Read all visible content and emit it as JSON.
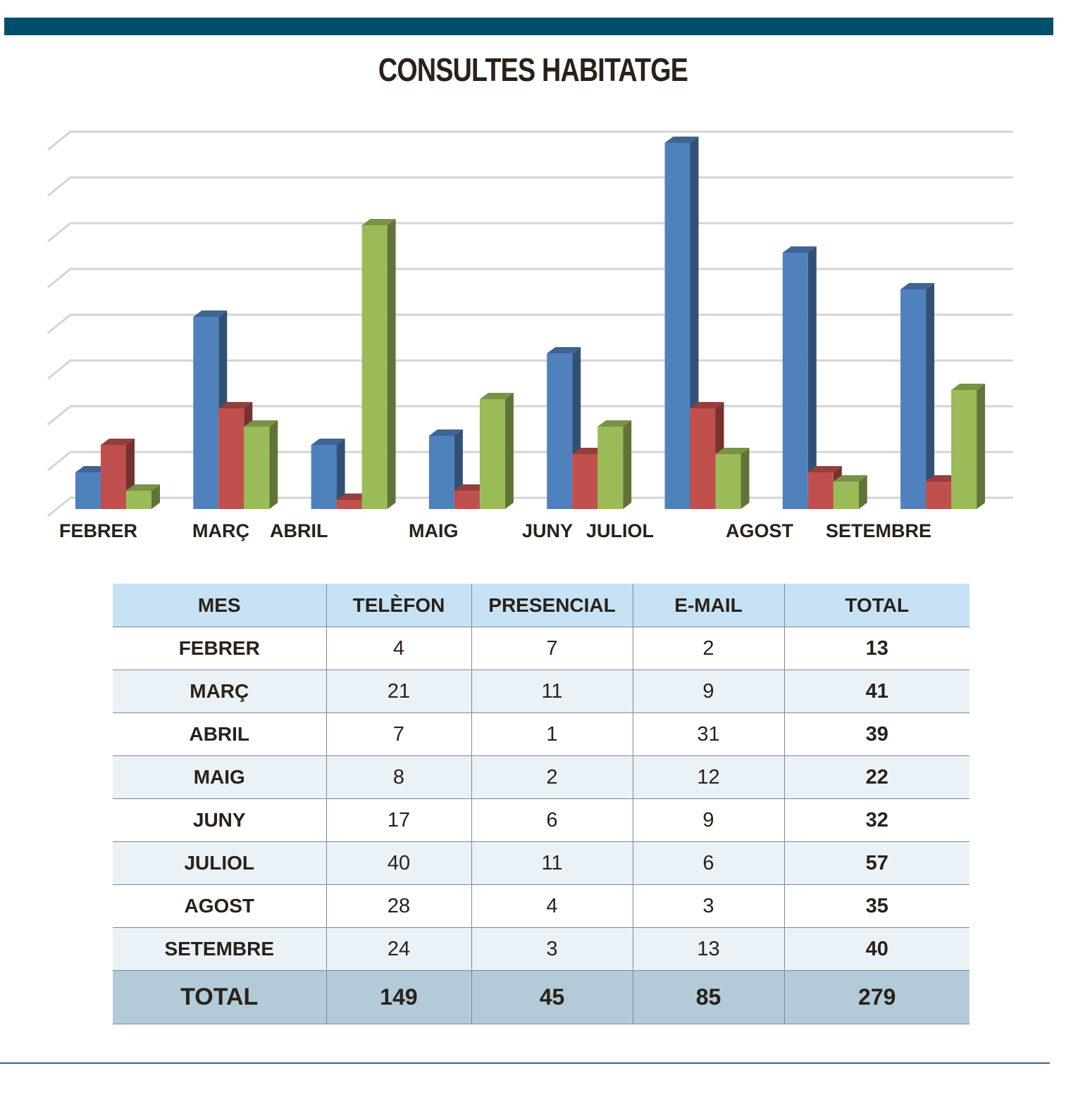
{
  "title": "CONSULTES HABITATGE",
  "chart_data": {
    "type": "bar",
    "style": "3d-clustered-column",
    "categories": [
      "FEBRER",
      "MARÇ",
      "ABRIL",
      "MAIG",
      "JUNY",
      "JULIOL",
      "AGOST",
      "SETEMBRE"
    ],
    "series": [
      {
        "name": "TELÈFON",
        "values": [
          4,
          21,
          7,
          8,
          17,
          40,
          28,
          24
        ],
        "color": "#4f81bd"
      },
      {
        "name": "PRESENCIAL",
        "values": [
          7,
          11,
          1,
          2,
          6,
          11,
          4,
          3
        ],
        "color": "#c0504d"
      },
      {
        "name": "E-MAIL",
        "values": [
          2,
          9,
          31,
          12,
          9,
          6,
          3,
          13
        ],
        "color": "#9bbb59"
      }
    ],
    "ylim": [
      0,
      40
    ],
    "grid": true,
    "legend": "none"
  },
  "table": {
    "headers": [
      "MES",
      "TELÈFON",
      "PRESENCIAL",
      "E-MAIL",
      "TOTAL"
    ],
    "rows": [
      [
        "FEBRER",
        "4",
        "7",
        "2",
        "13"
      ],
      [
        "MARÇ",
        "21",
        "11",
        "9",
        "41"
      ],
      [
        "ABRIL",
        "7",
        "1",
        "31",
        "39"
      ],
      [
        "MAIG",
        "8",
        "2",
        "12",
        "22"
      ],
      [
        "JUNY",
        "17",
        "6",
        "9",
        "32"
      ],
      [
        "JULIOL",
        "40",
        "11",
        "6",
        "57"
      ],
      [
        "AGOST",
        "28",
        "4",
        "3",
        "35"
      ],
      [
        "SETEMBRE",
        "24",
        "3",
        "13",
        "40"
      ]
    ],
    "total": [
      "TOTAL",
      "149",
      "45",
      "85",
      "279"
    ]
  }
}
